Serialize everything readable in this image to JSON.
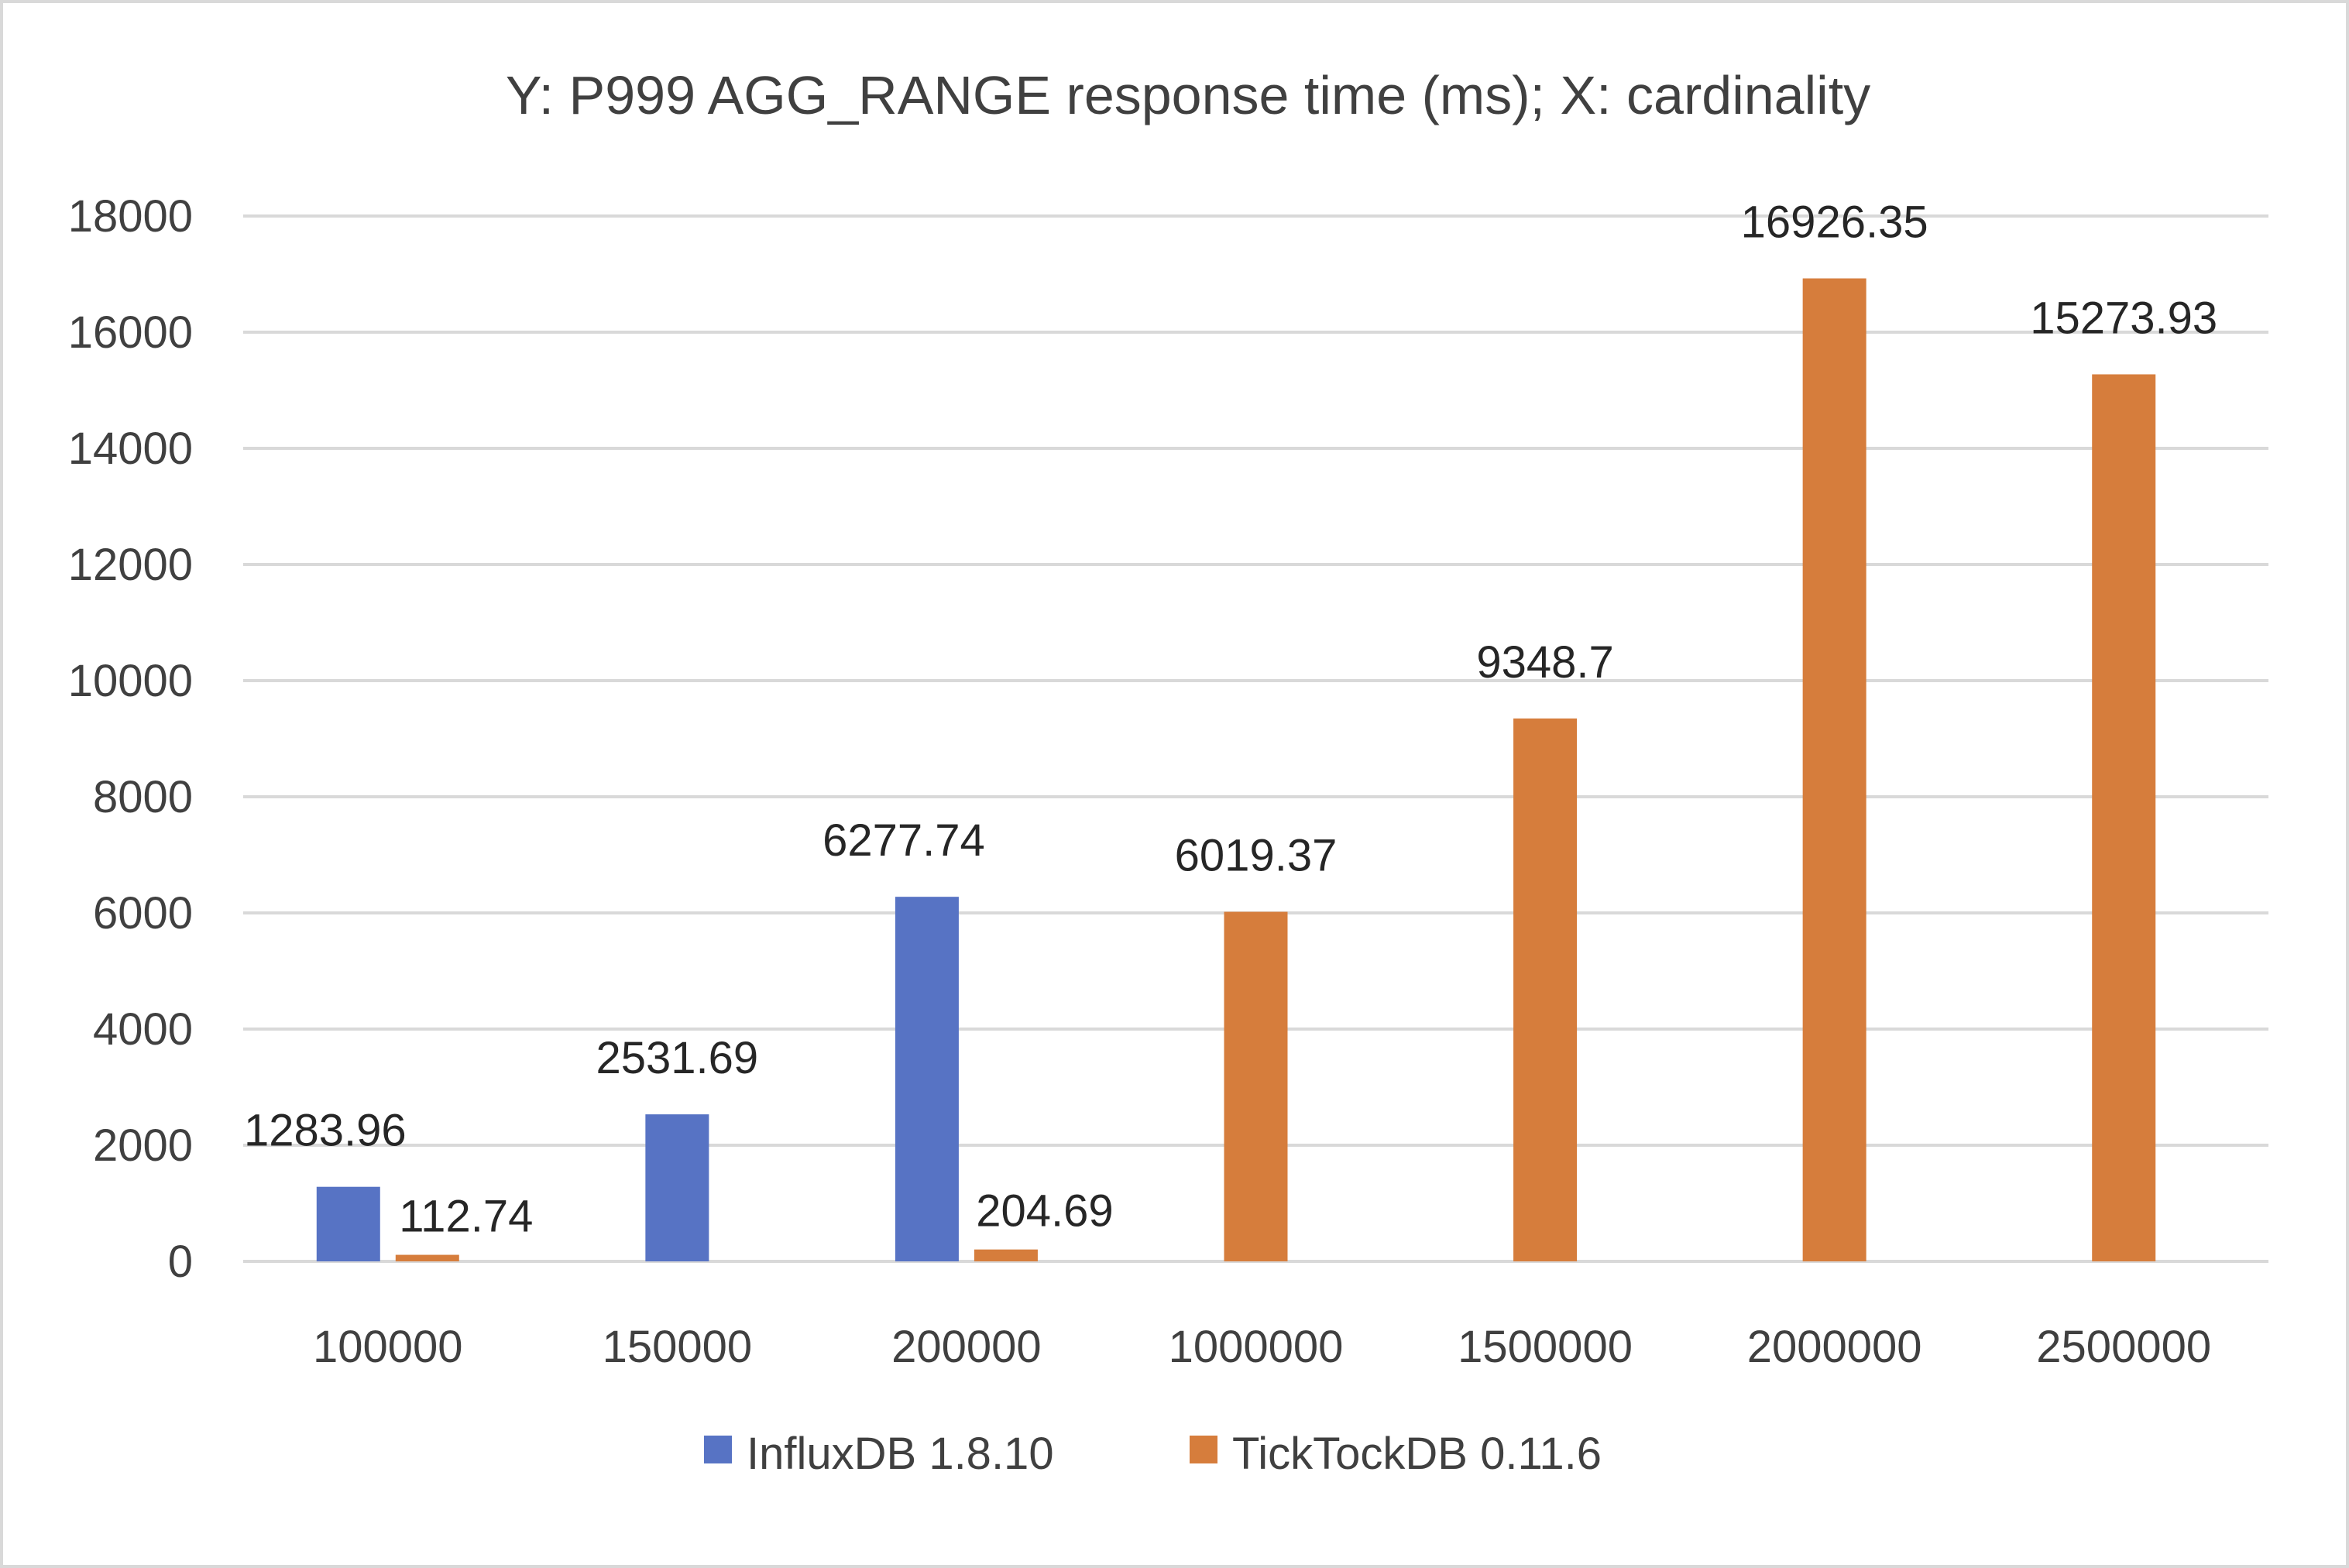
{
  "chart_data": {
    "type": "bar",
    "title": "Y: P999 AGG_RANGE response time (ms); X: cardinality",
    "xlabel": "",
    "ylabel": "",
    "categories": [
      "100000",
      "150000",
      "200000",
      "1000000",
      "1500000",
      "2000000",
      "2500000"
    ],
    "ylim": [
      0,
      18000
    ],
    "yticks": [
      0,
      2000,
      4000,
      6000,
      8000,
      10000,
      12000,
      14000,
      16000,
      18000
    ],
    "grid": true,
    "legend_position": "bottom",
    "series": [
      {
        "name": "InfluxDB 1.8.10",
        "color": "#5773c4",
        "values": [
          1283.96,
          2531.69,
          6277.74,
          null,
          null,
          null,
          null
        ],
        "labels": [
          "1283.96",
          "2531.69",
          "6277.74",
          "",
          "",
          "",
          ""
        ]
      },
      {
        "name": "TickTockDB 0.11.6",
        "color": "#d67d3c",
        "values": [
          112.74,
          null,
          204.69,
          6019.37,
          9348.7,
          16926.35,
          15273.93
        ],
        "labels": [
          "112.74",
          "",
          "204.69",
          "6019.37",
          "9348.7",
          "16926.35",
          "15273.93"
        ]
      }
    ]
  }
}
